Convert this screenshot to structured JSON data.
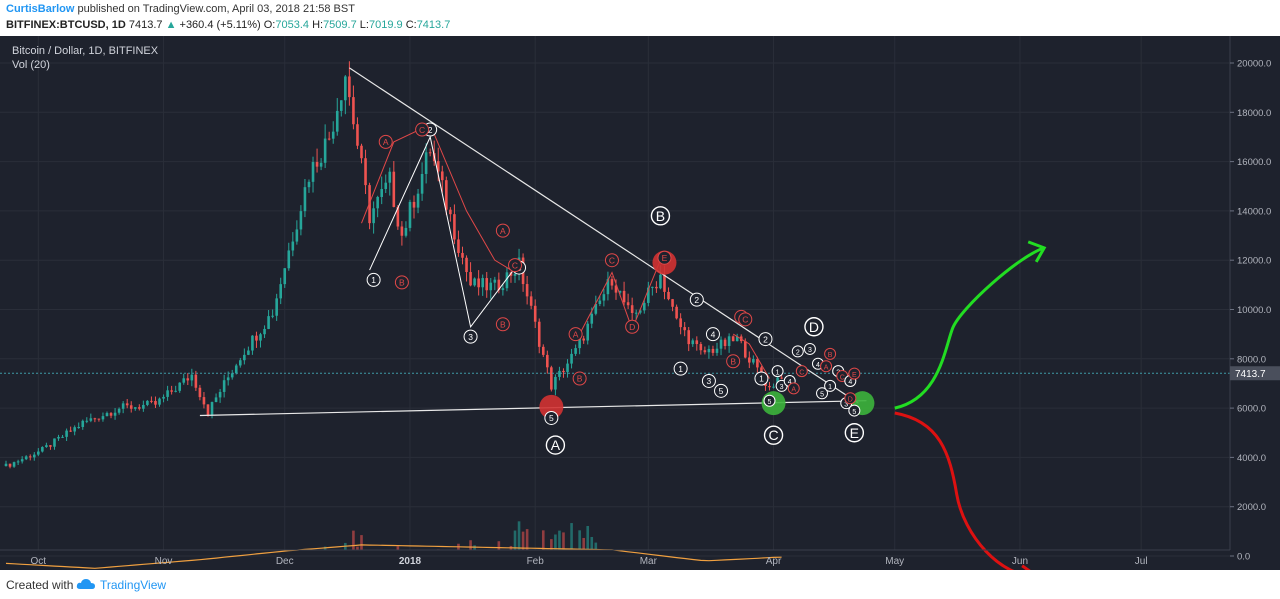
{
  "header": {
    "author": "CurtisBarlow",
    "published": "published on TradingView.com, April 03, 2018 21:58 BST",
    "symbol": "BITFINEX:BTCUSD, 1D",
    "last": "7413.7",
    "up_arrow": "▲",
    "change": "+360.4 (+5.11%)",
    "o_label": "O:",
    "o_value": "7053.4",
    "h_label": "H:",
    "h_value": "7509.7",
    "l_label": "L:",
    "l_value": "7019.9",
    "c_label": "C:",
    "c_value": "7413.7"
  },
  "footer": {
    "created_with": "Created with",
    "brand": "TradingView",
    "logo_icon": "tradingview-cloud-icon"
  },
  "colors": {
    "background": "#1e222d",
    "up": "#26a69a",
    "down": "#ef5350",
    "wave_red": "#e04848",
    "wave_white": "#ffffff",
    "arrow_green": "#22dd22",
    "arrow_red": "#dd1111",
    "price_tag": "#4a4f5c"
  },
  "chart_data": {
    "type": "candlestick",
    "title": "Bitcoin / Dollar, 1D, BITFINEX",
    "indicator": "Vol (20)",
    "ylim": [
      -2000,
      21000
    ],
    "y_ticks": [
      "20000.0",
      "18000.0",
      "16000.0",
      "14000.0",
      "12000.0",
      "10000.0",
      "8000.0",
      "6000.0",
      "4000.0",
      "2000.0",
      "0.0"
    ],
    "y_tick_values": [
      20000,
      18000,
      16000,
      14000,
      12000,
      10000,
      8000,
      6000,
      4000,
      2000,
      0
    ],
    "x_ticks": [
      "Oct",
      "Nov",
      "Dec",
      "2018",
      "Feb",
      "Mar",
      "Apr",
      "May",
      "Jun",
      "Jul"
    ],
    "x_tick_dates": [
      "2017-10-01",
      "2017-11-01",
      "2017-12-01",
      "2018-01-01",
      "2018-02-01",
      "2018-03-01",
      "2018-04-01",
      "2018-05-01",
      "2018-06-01",
      "2018-07-01"
    ],
    "last_price": 7413.7,
    "price_path": [
      [
        "2017-09-23",
        3650
      ],
      [
        "2017-10-02",
        4300
      ],
      [
        "2017-10-12",
        5400
      ],
      [
        "2017-10-21",
        6000
      ],
      [
        "2017-10-30",
        6150
      ],
      [
        "2017-11-08",
        7350
      ],
      [
        "2017-11-12",
        5850
      ],
      [
        "2017-11-20",
        8100
      ],
      [
        "2017-11-28",
        9900
      ],
      [
        "2017-12-07",
        15500
      ],
      [
        "2017-12-12",
        17000
      ],
      [
        "2017-12-16",
        19600
      ],
      [
        "2017-12-22",
        13800
      ],
      [
        "2017-12-27",
        15200
      ],
      [
        "2017-12-30",
        13000
      ],
      [
        "2018-01-06",
        16500
      ],
      [
        "2018-01-16",
        11000
      ],
      [
        "2018-01-22",
        10900
      ],
      [
        "2018-01-28",
        11800
      ],
      [
        "2018-02-05",
        6900
      ],
      [
        "2018-02-11",
        8300
      ],
      [
        "2018-02-20",
        11300
      ],
      [
        "2018-02-25",
        9600
      ],
      [
        "2018-03-04",
        11400
      ],
      [
        "2018-03-08",
        9500
      ],
      [
        "2018-03-14",
        8200
      ],
      [
        "2018-03-20",
        8600
      ],
      [
        "2018-03-23",
        8800
      ],
      [
        "2018-03-31",
        6800
      ],
      [
        "2018-04-03",
        7413.7
      ]
    ],
    "volume_path": [
      [
        "2017-09-23",
        500
      ],
      [
        "2017-10-15",
        900
      ],
      [
        "2017-11-12",
        1300
      ],
      [
        "2017-12-08",
        1800
      ],
      [
        "2017-12-20",
        2600
      ],
      [
        "2018-01-05",
        1900
      ],
      [
        "2018-02-06",
        3100
      ],
      [
        "2018-03-05",
        1400
      ],
      [
        "2018-04-01",
        800
      ]
    ],
    "volume_ma": [
      [
        "2017-09-23",
        -300
      ],
      [
        "2017-10-15",
        -500
      ],
      [
        "2017-11-10",
        -150
      ],
      [
        "2017-12-01",
        200
      ],
      [
        "2017-12-20",
        450
      ],
      [
        "2018-01-20",
        350
      ],
      [
        "2018-02-20",
        250
      ],
      [
        "2018-03-15",
        -200
      ],
      [
        "2018-04-02",
        -50
      ]
    ],
    "trendlines": [
      {
        "from": [
          "2017-12-17",
          19800
        ],
        "to": [
          "2018-04-22",
          6200
        ]
      },
      {
        "from": [
          "2017-11-10",
          5700
        ],
        "to": [
          "2018-04-24",
          6300
        ]
      }
    ],
    "wave_lines_white": [
      [
        [
          "2017-12-22",
          11600
        ],
        [
          "2018-01-06",
          17000
        ],
        [
          "2018-01-16",
          9300
        ],
        [
          "2018-01-28",
          11900
        ]
      ]
    ],
    "wave_lines_red": [
      [
        [
          "2017-12-20",
          13500
        ],
        [
          "2017-12-28",
          16800
        ],
        [
          "2018-01-06",
          17500
        ],
        [
          "2018-01-15",
          14000
        ],
        [
          "2018-01-22",
          12000
        ],
        [
          "2018-01-27",
          11500
        ]
      ],
      [
        [
          "2018-02-12",
          9000
        ],
        [
          "2018-02-20",
          11500
        ],
        [
          "2018-02-25",
          9200
        ],
        [
          "2018-03-04",
          12000
        ]
      ],
      [
        [
          "2018-03-22",
          9000
        ],
        [
          "2018-03-26",
          8600
        ],
        [
          "2018-03-31",
          7200
        ]
      ]
    ],
    "wave_labels": [
      {
        "t": "1",
        "date": "2017-12-23",
        "price": 11200,
        "style": "white",
        "size": "s"
      },
      {
        "t": "2",
        "date": "2018-01-06",
        "price": 17300,
        "style": "white",
        "size": "s"
      },
      {
        "t": "3",
        "date": "2018-01-16",
        "price": 8900,
        "style": "white",
        "size": "s"
      },
      {
        "t": "4",
        "date": "2018-01-28",
        "price": 11700,
        "style": "white",
        "size": "s"
      },
      {
        "t": "5",
        "date": "2018-02-05",
        "price": 5600,
        "style": "white",
        "size": "s"
      },
      {
        "t": "1",
        "date": "2018-03-09",
        "price": 7600,
        "style": "white",
        "size": "s"
      },
      {
        "t": "2",
        "date": "2018-03-13",
        "price": 10400,
        "style": "white",
        "size": "s"
      },
      {
        "t": "3",
        "date": "2018-03-16",
        "price": 7100,
        "style": "white",
        "size": "s"
      },
      {
        "t": "4",
        "date": "2018-03-17",
        "price": 9000,
        "style": "white",
        "size": "s"
      },
      {
        "t": "5",
        "date": "2018-03-19",
        "price": 6700,
        "style": "white",
        "size": "s"
      },
      {
        "t": "1",
        "date": "2018-03-29",
        "price": 7200,
        "style": "white",
        "size": "s"
      },
      {
        "t": "2",
        "date": "2018-03-30",
        "price": 8800,
        "style": "white",
        "size": "s"
      },
      {
        "t": "A",
        "date": "2017-12-26",
        "price": 16800,
        "style": "red",
        "size": "s"
      },
      {
        "t": "B",
        "date": "2017-12-30",
        "price": 11100,
        "style": "red",
        "size": "s"
      },
      {
        "t": "C",
        "date": "2018-01-04",
        "price": 17300,
        "style": "red",
        "size": "s"
      },
      {
        "t": "A",
        "date": "2018-01-24",
        "price": 13200,
        "style": "red",
        "size": "s"
      },
      {
        "t": "B",
        "date": "2018-01-24",
        "price": 9400,
        "style": "red",
        "size": "s"
      },
      {
        "t": "C",
        "date": "2018-01-27",
        "price": 11800,
        "style": "red",
        "size": "s"
      },
      {
        "t": "A",
        "date": "2018-02-11",
        "price": 9000,
        "style": "red",
        "size": "s"
      },
      {
        "t": "B",
        "date": "2018-02-12",
        "price": 7200,
        "style": "red",
        "size": "s"
      },
      {
        "t": "C",
        "date": "2018-02-20",
        "price": 12000,
        "style": "red",
        "size": "s"
      },
      {
        "t": "D",
        "date": "2018-02-25",
        "price": 9300,
        "style": "red",
        "size": "s"
      },
      {
        "t": "E",
        "date": "2018-03-05",
        "price": 12100,
        "style": "red",
        "size": "s"
      },
      {
        "t": "A",
        "date": "2018-03-24",
        "price": 9700,
        "style": "red",
        "size": "s"
      },
      {
        "t": "C",
        "date": "2018-03-25",
        "price": 9600,
        "style": "red",
        "size": "s"
      },
      {
        "t": "B",
        "date": "2018-03-22",
        "price": 7900,
        "style": "red",
        "size": "s"
      },
      {
        "t": "A",
        "date": "2018-02-06",
        "price": 4500,
        "style": "white",
        "size": "l"
      },
      {
        "t": "B",
        "date": "2018-03-04",
        "price": 13800,
        "style": "white",
        "size": "l"
      },
      {
        "t": "C",
        "date": "2018-04-01",
        "price": 4900,
        "style": "white",
        "size": "l"
      },
      {
        "t": "D",
        "date": "2018-04-11",
        "price": 9300,
        "style": "white",
        "size": "l"
      },
      {
        "t": "E",
        "date": "2018-04-21",
        "price": 5000,
        "style": "white",
        "size": "l"
      }
    ],
    "cluster_labels": [
      {
        "t": "1",
        "date": "2018-04-02",
        "price": 7500,
        "style": "white"
      },
      {
        "t": "5",
        "date": "2018-03-31",
        "price": 6300,
        "style": "white"
      },
      {
        "t": "3",
        "date": "2018-04-03",
        "price": 6900,
        "style": "white"
      },
      {
        "t": "4",
        "date": "2018-04-05",
        "price": 7100,
        "style": "white"
      },
      {
        "t": "2",
        "date": "2018-04-07",
        "price": 8300,
        "style": "white"
      },
      {
        "t": "3",
        "date": "2018-04-10",
        "price": 8400,
        "style": "white"
      },
      {
        "t": "A",
        "date": "2018-04-06",
        "price": 6800,
        "style": "red"
      },
      {
        "t": "C",
        "date": "2018-04-08",
        "price": 7500,
        "style": "red"
      },
      {
        "t": "4",
        "date": "2018-04-12",
        "price": 7800,
        "style": "white"
      },
      {
        "t": "5",
        "date": "2018-04-13",
        "price": 6600,
        "style": "white"
      },
      {
        "t": "A",
        "date": "2018-04-14",
        "price": 7700,
        "style": "red"
      },
      {
        "t": "B",
        "date": "2018-04-15",
        "price": 8200,
        "style": "red"
      },
      {
        "t": "1",
        "date": "2018-04-15",
        "price": 6900,
        "style": "white"
      },
      {
        "t": "2",
        "date": "2018-04-17",
        "price": 7500,
        "style": "white"
      },
      {
        "t": "C",
        "date": "2018-04-18",
        "price": 7300,
        "style": "red"
      },
      {
        "t": "3",
        "date": "2018-04-19",
        "price": 6200,
        "style": "white"
      },
      {
        "t": "4",
        "date": "2018-04-20",
        "price": 7100,
        "style": "white"
      },
      {
        "t": "5",
        "date": "2018-04-21",
        "price": 5900,
        "style": "white"
      },
      {
        "t": "D",
        "date": "2018-04-20",
        "price": 6400,
        "style": "red"
      },
      {
        "t": "E",
        "date": "2018-04-21",
        "price": 7400,
        "style": "red"
      }
    ],
    "big_circles": [
      {
        "date": "2018-02-05",
        "price": 6050,
        "color": "red"
      },
      {
        "date": "2018-03-05",
        "price": 11900,
        "color": "red"
      },
      {
        "date": "2018-04-01",
        "price": 6200,
        "color": "green"
      },
      {
        "date": "2018-04-23",
        "price": 6200,
        "color": "green"
      }
    ],
    "projection_up": {
      "start": [
        "2018-05-01",
        6000
      ],
      "end": [
        "2018-06-07",
        12500
      ]
    },
    "projection_down": {
      "start": [
        "2018-05-01",
        5800
      ],
      "end": [
        "2018-06-05",
        -800
      ]
    }
  }
}
